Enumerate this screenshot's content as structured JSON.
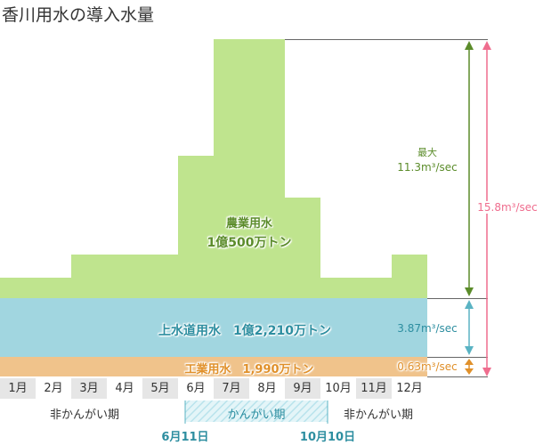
{
  "title": "香川用水の導入水量",
  "colors": {
    "agriculture": "#bfe48e",
    "water_supply": "#a1d6e0",
    "industrial": "#f0c38b",
    "agri_text": "#5b8c2a",
    "water_text": "#2d8ea0",
    "industrial_text": "#e0902a",
    "total": "#ef6d8e"
  },
  "chart_data": {
    "type": "area",
    "categories": [
      "1月",
      "2月",
      "3月",
      "4月",
      "5月",
      "6月",
      "7月",
      "8月",
      "9月",
      "10月",
      "11月",
      "12月"
    ],
    "series": [
      {
        "name": "農業用水",
        "values": [
          0.9,
          0.9,
          1.9,
          1.9,
          1.9,
          6.2,
          11.3,
          11.3,
          4.4,
          0.9,
          0.9,
          1.9
        ]
      },
      {
        "name": "上水道用水",
        "values": [
          3.87,
          3.87,
          3.87,
          3.87,
          3.87,
          3.87,
          3.87,
          3.87,
          3.87,
          3.87,
          3.87,
          3.87
        ]
      },
      {
        "name": "工業用水",
        "values": [
          0.63,
          0.63,
          0.63,
          0.63,
          0.63,
          0.63,
          0.63,
          0.63,
          0.63,
          0.63,
          0.63,
          0.63
        ]
      }
    ]
  },
  "labels": {
    "agriculture_name": "農業用水",
    "agriculture_volume": "1億500万トン",
    "water_supply": "上水道用水　1億2,210万トン",
    "industrial": "工業用水　1,990万トン",
    "max_label": "最大",
    "max_value": "11.3m³/sec",
    "water_rate": "3.87m³/sec",
    "industrial_rate": "0.63m³/sec",
    "total_rate": "15.8m³/sec"
  },
  "periods": {
    "non_irrigation": "非かんがい期",
    "irrigation": "かんがい期",
    "start": "6月11日",
    "end": "10月10日"
  }
}
